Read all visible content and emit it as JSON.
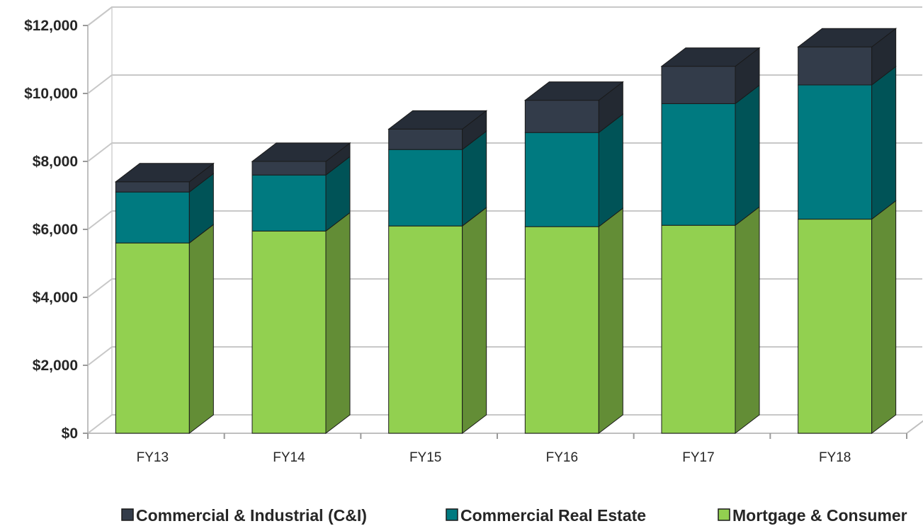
{
  "chart_data": {
    "type": "bar",
    "stacked": true,
    "three_d": true,
    "categories": [
      "FY13",
      "FY14",
      "FY15",
      "FY16",
      "FY17",
      "FY18"
    ],
    "series": [
      {
        "name": "Mortgage & Consumer",
        "values": [
          5600,
          5950,
          6100,
          6080,
          6120,
          6300
        ],
        "color": "#92d050"
      },
      {
        "name": "Commercial Real Estate",
        "values": [
          1500,
          1650,
          2250,
          2770,
          3580,
          3950
        ],
        "color": "#007a80"
      },
      {
        "name": "Commercial & Industrial (C&I)",
        "values": [
          300,
          400,
          600,
          950,
          1100,
          1120
        ],
        "color": "#333c4a"
      }
    ],
    "yticks": [
      "$0",
      "$2,000",
      "$4,000",
      "$6,000",
      "$8,000",
      "$10,000",
      "$12,000"
    ],
    "ylim": [
      0,
      12000
    ],
    "grid": true,
    "legend_position": "bottom",
    "legend_order": [
      "Commercial & Industrial (C&I)",
      "Commercial Real Estate",
      "Mortgage & Consumer"
    ]
  }
}
